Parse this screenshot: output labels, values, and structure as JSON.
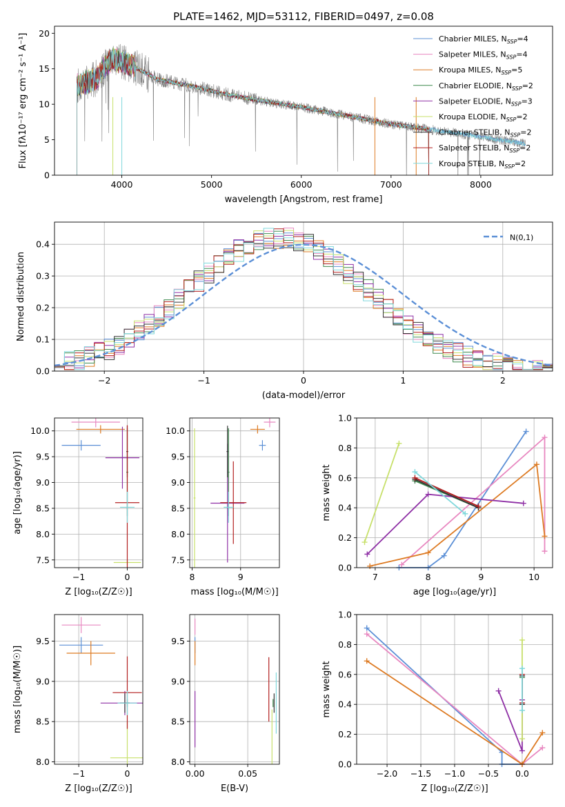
{
  "title": "PLATE=1462, MJD=53112, FIBERID=0497, z=0.08",
  "series": [
    {
      "name": "Chabrier MILES",
      "nssp": "4",
      "color": "#5b8fd6"
    },
    {
      "name": "Salpeter MILES",
      "nssp": "4",
      "color": "#e887c0"
    },
    {
      "name": "Kroupa MILES",
      "nssp": "5",
      "color": "#dd7a22"
    },
    {
      "name": "Chabrier ELODIE",
      "nssp": "2",
      "color": "#3f8a4f"
    },
    {
      "name": "Salpeter ELODIE",
      "nssp": "3",
      "color": "#8e2fa5"
    },
    {
      "name": "Kroupa ELODIE",
      "nssp": "2",
      "color": "#c7e06a"
    },
    {
      "name": "Chabrier STELIB",
      "nssp": "2",
      "color": "#333333"
    },
    {
      "name": "Salpeter STELIB",
      "nssp": "2",
      "color": "#b21e1e"
    },
    {
      "name": "Kroupa STELIB",
      "nssp": "2",
      "color": "#7fd8dc"
    }
  ],
  "chart_data": [
    {
      "id": "spectrum",
      "type": "line",
      "xlabel": "wavelength [Angstrom, rest frame]",
      "ylabel": "Flux [fλ10⁻¹⁷ erg cm⁻² s⁻¹ A⁻¹]",
      "xlim": [
        3250,
        8800
      ],
      "ylim": [
        0,
        21
      ],
      "xticks": [
        4000,
        5000,
        6000,
        7000,
        8000
      ],
      "yticks": [
        0,
        5,
        10,
        15,
        20
      ],
      "data_color": "#808080",
      "continuum": {
        "x": [
          3500,
          3700,
          3900,
          4100,
          4400,
          4800,
          5200,
          5600,
          6000,
          6500,
          7000,
          7400,
          7800,
          8200,
          8500
        ],
        "y": [
          12.5,
          13.5,
          16.5,
          15.5,
          13.5,
          12.5,
          11.3,
          10.4,
          9.6,
          8.4,
          7.2,
          6.5,
          5.8,
          5.0,
          4.4
        ]
      },
      "model_end": 7420,
      "data_end": 8500,
      "legend_position": "upper right",
      "grid": false
    },
    {
      "id": "residuals",
      "type": "histogram",
      "xlabel": "(data-model)/error",
      "ylabel": "Normed distribution",
      "xlim": [
        -2.5,
        2.5
      ],
      "ylim": [
        0,
        0.47
      ],
      "xticks": [
        -2,
        -1,
        0,
        1,
        2
      ],
      "yticks": [
        0.0,
        0.1,
        0.2,
        0.3,
        0.4
      ],
      "bin_width": 0.1,
      "reference": {
        "name": "N(0,1)",
        "color": "#5b8fd6",
        "style": "dashed"
      },
      "legend_position": "upper right",
      "grid": true
    },
    {
      "id": "age-vs-Z",
      "type": "errorbar",
      "xlabel": "Z [log₁₀(Z/Z☉)]",
      "ylabel": "age  [log₁₀(age/yr)]",
      "xlim": [
        -1.5,
        0.32
      ],
      "ylim": [
        7.35,
        10.25
      ],
      "xticks": [
        -1,
        0
      ],
      "yticks": [
        7.5,
        8.0,
        8.5,
        9.0,
        9.5,
        10.0
      ],
      "grid": true,
      "points": [
        {
          "s": 0,
          "x": -0.95,
          "xerr": 0.4,
          "y": 9.72,
          "yerr": 0.1
        },
        {
          "s": 1,
          "x": -0.65,
          "xerr": 0.5,
          "y": 10.17,
          "yerr": 0.1
        },
        {
          "s": 2,
          "x": -0.55,
          "xerr": 0.5,
          "y": 10.03,
          "yerr": 0.08
        },
        {
          "s": 3,
          "x": 0.0,
          "xerr": 0.02,
          "y": 9.2,
          "yerr": 0.85
        },
        {
          "s": 4,
          "x": -0.1,
          "xerr": 0.35,
          "y": 9.48,
          "yerr": 0.6
        },
        {
          "s": 5,
          "x": 0.0,
          "xerr": 0.28,
          "y": 7.45,
          "yerr": 0.05
        },
        {
          "s": 6,
          "x": 0.0,
          "xerr": 0.02,
          "y": 9.6,
          "yerr": 0.5
        },
        {
          "s": 7,
          "x": 0.0,
          "xerr": 0.25,
          "y": 8.61,
          "yerr": 1.5
        },
        {
          "s": 8,
          "x": 0.0,
          "xerr": 0.15,
          "y": 8.52,
          "yerr": 0.3
        }
      ]
    },
    {
      "id": "age-vs-mass",
      "type": "errorbar",
      "xlabel": "mass [log₁₀(M/M☉)]",
      "ylabel": "",
      "xlim": [
        7.95,
        9.8
      ],
      "ylim": [
        7.35,
        10.25
      ],
      "xticks": [
        8,
        9
      ],
      "yticks": [
        7.5,
        8.0,
        8.5,
        9.0,
        9.5,
        10.0
      ],
      "grid": true,
      "points": [
        {
          "s": 0,
          "x": 9.45,
          "xerr": 0.07,
          "y": 9.72,
          "yerr": 0.1
        },
        {
          "s": 1,
          "x": 9.6,
          "xerr": 0.12,
          "y": 10.17,
          "yerr": 0.1
        },
        {
          "s": 2,
          "x": 9.35,
          "xerr": 0.15,
          "y": 10.03,
          "yerr": 0.08
        },
        {
          "s": 3,
          "x": 8.75,
          "xerr": 0.02,
          "y": 9.2,
          "yerr": 0.85
        },
        {
          "s": 4,
          "x": 8.73,
          "xerr": 0.35,
          "y": 8.6,
          "yerr": 1.15
        },
        {
          "s": 5,
          "x": 8.05,
          "xerr": 0.02,
          "y": 8.7,
          "yerr": 1.35
        },
        {
          "s": 6,
          "x": 8.73,
          "xerr": 0.02,
          "y": 9.6,
          "yerr": 0.5
        },
        {
          "s": 7,
          "x": 8.85,
          "xerr": 0.27,
          "y": 8.61,
          "yerr": 0.8
        },
        {
          "s": 8,
          "x": 8.75,
          "xerr": 0.1,
          "y": 8.52,
          "yerr": 0.3
        }
      ]
    },
    {
      "id": "weight-vs-age",
      "type": "line",
      "xlabel": "age  [log₁₀(age/yr)]",
      "ylabel": "mass weight",
      "xlim": [
        6.65,
        10.35
      ],
      "ylim": [
        0,
        1.0
      ],
      "xticks": [
        7,
        8,
        9,
        10
      ],
      "yticks": [
        0.0,
        0.2,
        0.4,
        0.6,
        0.8,
        1.0
      ],
      "grid": true,
      "series": [
        {
          "s": 0,
          "x": [
            7.45,
            8.0,
            8.3,
            9.85
          ],
          "y": [
            0.0,
            0.0,
            0.08,
            0.91
          ]
        },
        {
          "s": 1,
          "x": [
            7.5,
            10.2,
            10.2
          ],
          "y": [
            0.02,
            0.87,
            0.11
          ]
        },
        {
          "s": 2,
          "x": [
            6.9,
            8.0,
            10.05,
            10.2
          ],
          "y": [
            0.01,
            0.1,
            0.69,
            0.21
          ]
        },
        {
          "s": 3,
          "x": [
            7.75,
            8.95
          ],
          "y": [
            0.58,
            0.4
          ]
        },
        {
          "s": 4,
          "x": [
            6.85,
            8.0,
            9.8
          ],
          "y": [
            0.09,
            0.49,
            0.43
          ]
        },
        {
          "s": 5,
          "x": [
            6.8,
            7.45
          ],
          "y": [
            0.17,
            0.83
          ]
        },
        {
          "s": 6,
          "x": [
            7.75,
            8.95
          ],
          "y": [
            0.59,
            0.4
          ]
        },
        {
          "s": 7,
          "x": [
            7.75,
            8.95
          ],
          "y": [
            0.6,
            0.41
          ]
        },
        {
          "s": 8,
          "x": [
            7.75,
            8.7
          ],
          "y": [
            0.64,
            0.36
          ]
        }
      ]
    },
    {
      "id": "mass-vs-Z",
      "type": "errorbar",
      "xlabel": "Z [log₁₀(Z/Z☉)]",
      "ylabel": "mass [log₁₀(M/M☉)]",
      "xlim": [
        -1.5,
        0.32
      ],
      "ylim": [
        7.97,
        9.83
      ],
      "xticks": [
        -1,
        0
      ],
      "yticks": [
        8.0,
        8.5,
        9.0,
        9.5
      ],
      "grid": true,
      "points": [
        {
          "s": 0,
          "x": -0.95,
          "xerr": 0.45,
          "y": 9.45,
          "yerr": 0.1
        },
        {
          "s": 1,
          "x": -0.95,
          "xerr": 0.4,
          "y": 9.7,
          "yerr": 0.1
        },
        {
          "s": 2,
          "x": -0.75,
          "xerr": 0.5,
          "y": 9.35,
          "yerr": 0.15
        },
        {
          "s": 3,
          "x": 0.0,
          "xerr": 0.02,
          "y": 8.73,
          "yerr": 0.05
        },
        {
          "s": 4,
          "x": -0.05,
          "xerr": 0.5,
          "y": 8.73,
          "yerr": 0.15
        },
        {
          "s": 5,
          "x": 0.0,
          "xerr": 0.35,
          "y": 8.05,
          "yerr": 0.45
        },
        {
          "s": 6,
          "x": -0.05,
          "xerr": 0.1,
          "y": 8.73,
          "yerr": 0.12
        },
        {
          "s": 7,
          "x": 0.0,
          "xerr": 0.3,
          "y": 8.86,
          "yerr": 0.45
        },
        {
          "s": 8,
          "x": 0.0,
          "xerr": 0.2,
          "y": 8.73,
          "yerr": 0.15
        }
      ]
    },
    {
      "id": "mass-vs-ebv",
      "type": "errorbar",
      "xlabel": "E(B-V)",
      "ylabel": "",
      "xlim": [
        -0.005,
        0.08
      ],
      "ylim": [
        7.97,
        9.83
      ],
      "xticks": [
        0.0,
        0.05
      ],
      "yticks": [
        8.0,
        8.5,
        9.0,
        9.5
      ],
      "grid": true,
      "points": [
        {
          "s": 0,
          "x": 0.0,
          "xerr": 0.0,
          "y": 9.45,
          "yerr": 0.1
        },
        {
          "s": 1,
          "x": 0.0,
          "xerr": 0.0,
          "y": 9.68,
          "yerr": 0.1
        },
        {
          "s": 2,
          "x": 0.0,
          "xerr": 0.0,
          "y": 9.35,
          "yerr": 0.15
        },
        {
          "s": 3,
          "x": 0.074,
          "xerr": 0.0,
          "y": 8.73,
          "yerr": 0.05
        },
        {
          "s": 4,
          "x": 0.0,
          "xerr": 0.0,
          "y": 8.53,
          "yerr": 0.35
        },
        {
          "s": 5,
          "x": 0.073,
          "xerr": 0.0,
          "y": 8.1,
          "yerr": 0.55
        },
        {
          "s": 6,
          "x": 0.075,
          "xerr": 0.0,
          "y": 8.73,
          "yerr": 0.12
        },
        {
          "s": 7,
          "x": 0.07,
          "xerr": 0.0,
          "y": 8.9,
          "yerr": 0.4
        },
        {
          "s": 8,
          "x": 0.077,
          "xerr": 0.0,
          "y": 8.73,
          "yerr": 0.38
        }
      ]
    },
    {
      "id": "weight-vs-Z",
      "type": "line",
      "xlabel": "Z [log₁₀(Z/Z☉)]",
      "ylabel": "mass weight",
      "xlim": [
        -2.45,
        0.45
      ],
      "ylim": [
        0,
        1.0
      ],
      "xticks": [
        -2.0,
        -1.5,
        -1.0,
        -0.5,
        0.0
      ],
      "yticks": [
        0.0,
        0.2,
        0.4,
        0.6,
        0.8,
        1.0
      ],
      "grid": true,
      "series": [
        {
          "s": 0,
          "x": [
            -2.3,
            -0.3,
            -0.3,
            0.0
          ],
          "y": [
            0.91,
            0.08,
            0.0,
            0.0
          ]
        },
        {
          "s": 1,
          "x": [
            -2.3,
            0.0,
            0.3
          ],
          "y": [
            0.87,
            0.0,
            0.11
          ]
        },
        {
          "s": 2,
          "x": [
            -2.3,
            0.0,
            0.3
          ],
          "y": [
            0.69,
            0.0,
            0.21
          ]
        },
        {
          "s": 3,
          "x": [
            0.0,
            0.0
          ],
          "y": [
            0.58,
            0.4
          ]
        },
        {
          "s": 4,
          "x": [
            -0.35,
            0.0,
            0.0
          ],
          "y": [
            0.49,
            0.09,
            0.43
          ]
        },
        {
          "s": 5,
          "x": [
            0.0,
            0.0
          ],
          "y": [
            0.17,
            0.83
          ]
        },
        {
          "s": 6,
          "x": [
            0.0,
            0.0
          ],
          "y": [
            0.59,
            0.4
          ]
        },
        {
          "s": 7,
          "x": [
            0.0,
            0.0
          ],
          "y": [
            0.6,
            0.41
          ]
        },
        {
          "s": 8,
          "x": [
            0.0,
            0.0
          ],
          "y": [
            0.64,
            0.36
          ]
        }
      ]
    }
  ]
}
